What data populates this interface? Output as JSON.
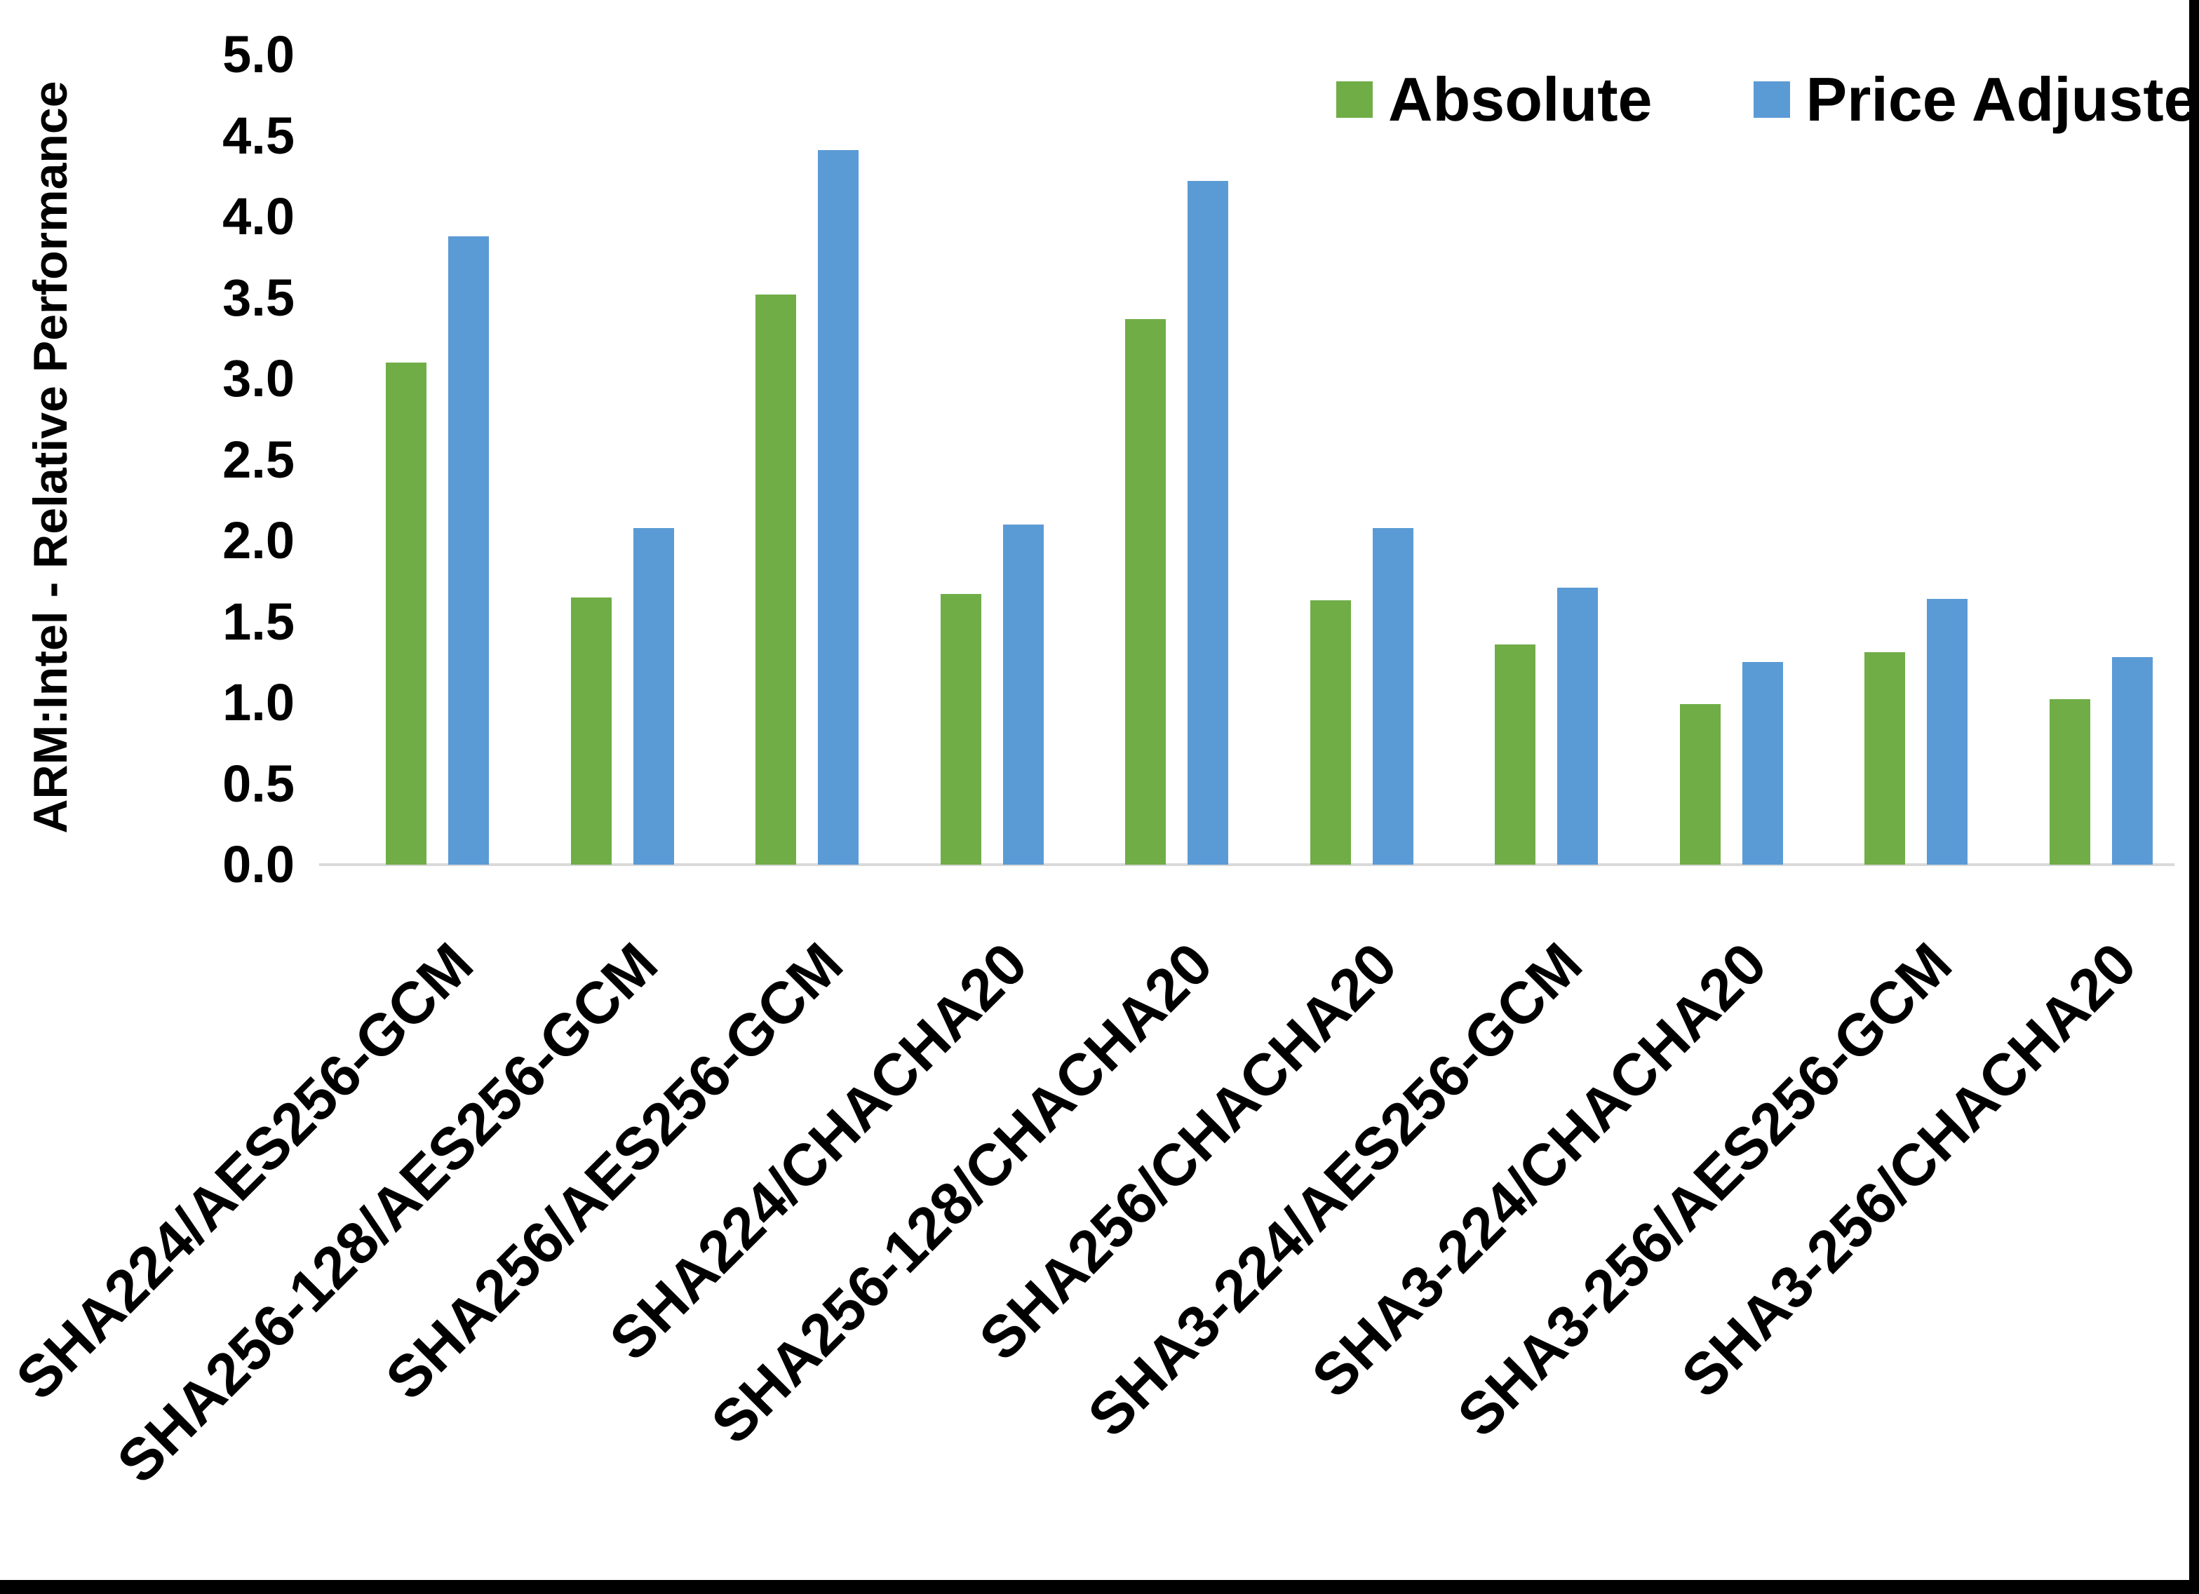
{
  "figure": {
    "background": "#FFFFFF",
    "border_color": "#000000",
    "axis_line_color": "#D9D9D9"
  },
  "legend": {
    "position": "top-right",
    "items": [
      {
        "label": "Absolute",
        "color": "#70AD47"
      },
      {
        "label": "Price Adjusted",
        "color": "#5B9BD5"
      }
    ]
  },
  "y_axis": {
    "title": "ARM:Intel - Relative Performance",
    "tick_labels": [
      "0.0",
      "0.5",
      "1.0",
      "1.5",
      "2.0",
      "2.5",
      "3.0",
      "3.5",
      "4.0",
      "4.5",
      "5.0"
    ],
    "min": 0,
    "max": 5,
    "step": 0.5
  },
  "chart_data": {
    "type": "bar",
    "title": "",
    "xlabel": "",
    "ylabel": "ARM:Intel - Relative Performance",
    "ylim": [
      0,
      5
    ],
    "ytick_step": 0.5,
    "grid": false,
    "legend_position": "top-right",
    "bar_orientation": "vertical",
    "categories": [
      "SHA224/AES256-GCM",
      "SHA256-128/AES256-GCM",
      "SHA256/AES256-GCM",
      "SHA224/CHACHA20",
      "SHA256-128/CHACHA20",
      "SHA256/CHACHA20",
      "SHA3-224/AES256-GCM",
      "SHA3-224/CHACHA20",
      "SHA3-256/AES256-GCM",
      "SHA3-256/CHACHA20"
    ],
    "series": [
      {
        "name": "Absolute",
        "color": "#70AD47",
        "values": [
          3.1,
          1.65,
          3.52,
          1.67,
          3.37,
          1.63,
          1.36,
          0.99,
          1.31,
          1.02
        ]
      },
      {
        "name": "Price Adjusted",
        "color": "#5B9BD5",
        "values": [
          3.88,
          2.08,
          4.41,
          2.1,
          4.22,
          2.08,
          1.71,
          1.25,
          1.64,
          1.28
        ]
      }
    ]
  }
}
